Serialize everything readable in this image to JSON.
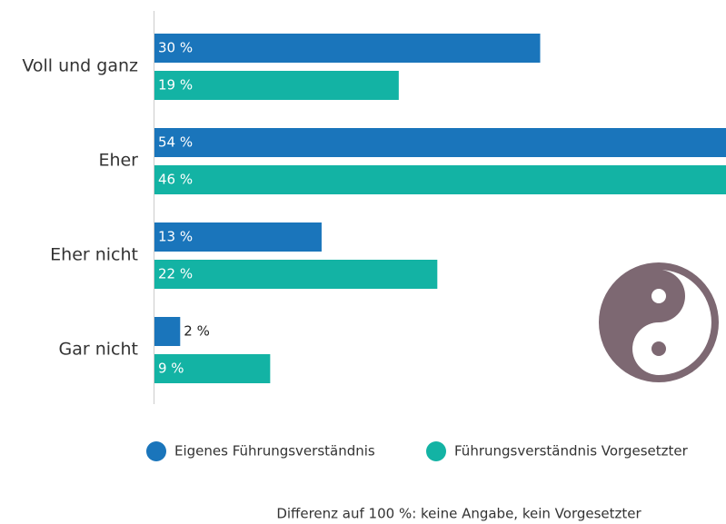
{
  "chart_data": {
    "type": "bar",
    "orientation": "horizontal",
    "categories": [
      "Voll und ganz",
      "Eher",
      "Eher nicht",
      "Gar nicht"
    ],
    "series": [
      {
        "name": "Eigenes Führungsverständnis",
        "color": "#1a75bb",
        "values": [
          30,
          54,
          13,
          2
        ],
        "value_labels": [
          "30 %",
          "54 %",
          "13 %",
          "2 %"
        ]
      },
      {
        "name": "Führungsverständnis Vorgesetzter",
        "color": "#13b3a4",
        "values": [
          19,
          46,
          22,
          9
        ],
        "value_labels": [
          "19 %",
          "46 %",
          "22 %",
          "9 %"
        ]
      }
    ],
    "note": "Differenz auf 100 %: keine Angabe, kein Vorgesetzter"
  }
}
